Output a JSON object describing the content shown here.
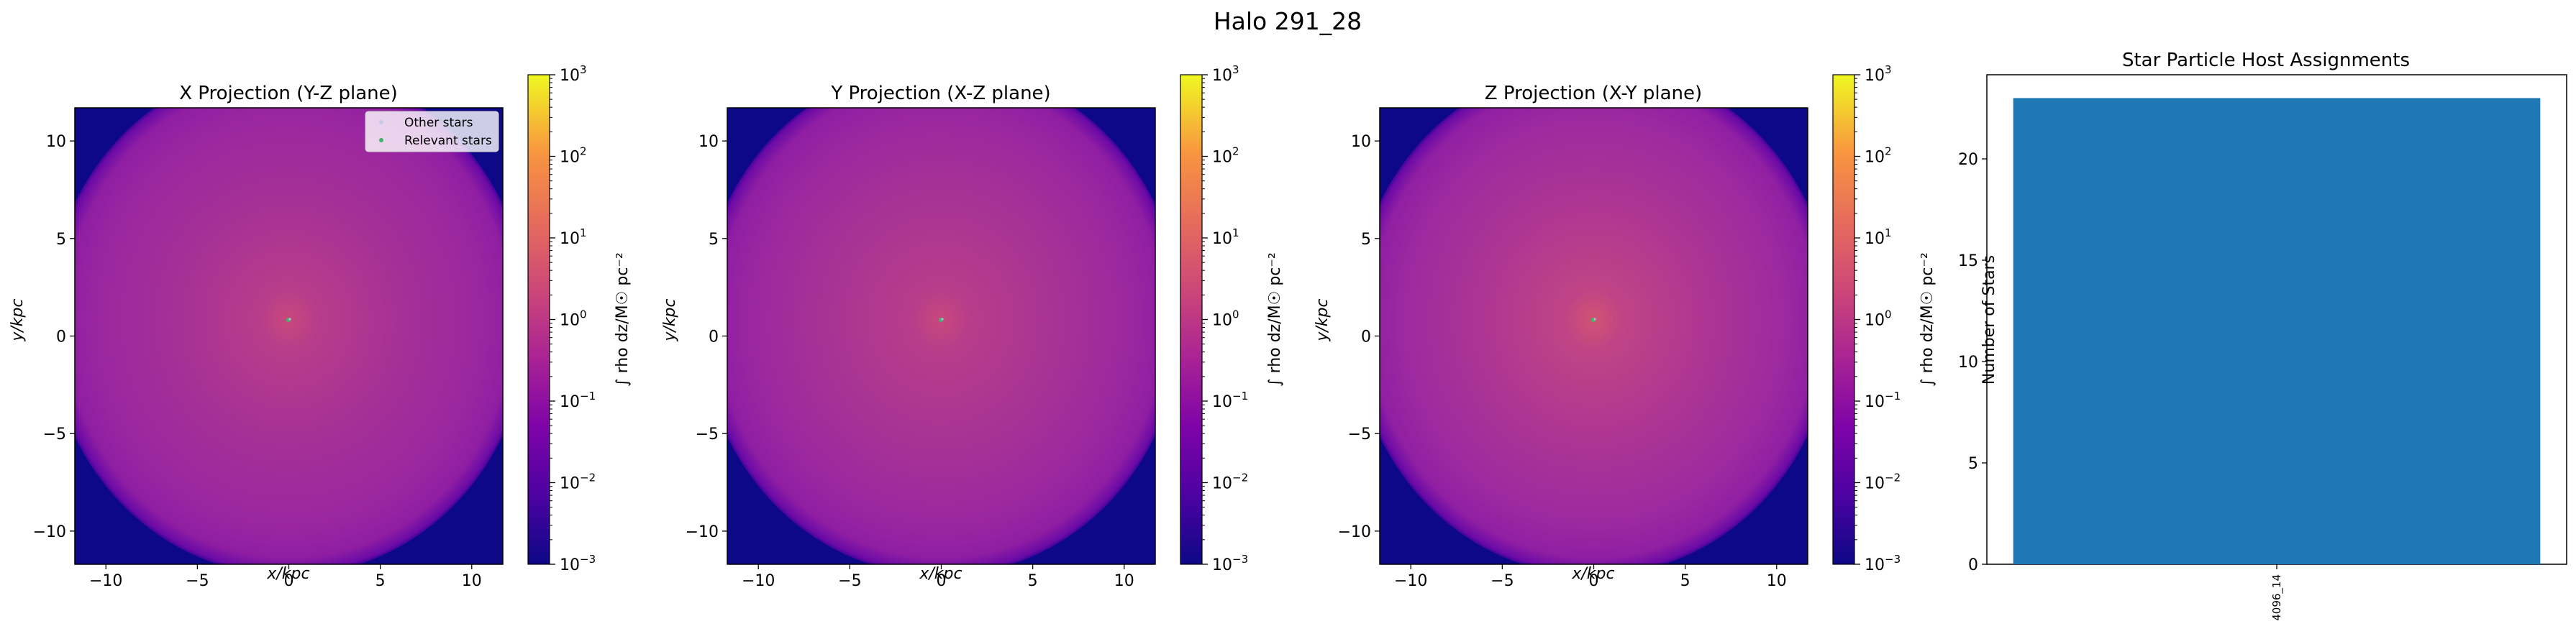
{
  "suptitle": "Halo 291_28",
  "panels": [
    {
      "title": "X Projection (Y-Z plane)",
      "xlabel": "x/kpc",
      "ylabel": "y/kpc",
      "style": "x"
    },
    {
      "title": "Y Projection (X-Z plane)",
      "xlabel": "x/kpc",
      "ylabel": "y/kpc",
      "style": "y"
    },
    {
      "title": "Z Projection (X-Y plane)",
      "xlabel": "x/kpc",
      "ylabel": "y/kpc",
      "style": "z"
    }
  ],
  "legend": {
    "other": "Other stars",
    "relevant": "Relevant stars"
  },
  "colorbar": {
    "label": "∫ rho dz/M☉ pc⁻²",
    "ticks": [
      {
        "base": "10",
        "exp": "3",
        "value": 3
      },
      {
        "base": "10",
        "exp": "2",
        "value": 2
      },
      {
        "base": "10",
        "exp": "1",
        "value": 1
      },
      {
        "base": "10",
        "exp": "0",
        "value": 0
      },
      {
        "base": "10",
        "exp": "−1",
        "value": -1
      },
      {
        "base": "10",
        "exp": "−2",
        "value": -2
      },
      {
        "base": "10",
        "exp": "−3",
        "value": -3
      }
    ],
    "scale": "log",
    "colormap": "plasma"
  },
  "map_axes": {
    "xlim": [
      -11.7,
      11.7
    ],
    "ylim": [
      -11.7,
      11.7
    ],
    "xticks": [
      {
        "v": -10,
        "label": "−10"
      },
      {
        "v": -5,
        "label": "−5"
      },
      {
        "v": 0,
        "label": "0"
      },
      {
        "v": 5,
        "label": "5"
      },
      {
        "v": 10,
        "label": "10"
      }
    ],
    "yticks": [
      {
        "v": 10,
        "label": "10"
      },
      {
        "v": 5,
        "label": "5"
      },
      {
        "v": 0,
        "label": "0"
      },
      {
        "v": -5,
        "label": "−5"
      },
      {
        "v": -10,
        "label": "−10"
      }
    ]
  },
  "chart_data": [
    {
      "type": "bar",
      "title": "Star Particle Host Assignments",
      "categories": [
        "4096_14"
      ],
      "values": [
        23
      ],
      "xlabel": "",
      "ylabel": "Number of Stars",
      "ylim": [
        0,
        24.15
      ],
      "yticks": [
        0,
        5,
        10,
        15,
        20
      ],
      "color": "#1f77b4"
    }
  ]
}
